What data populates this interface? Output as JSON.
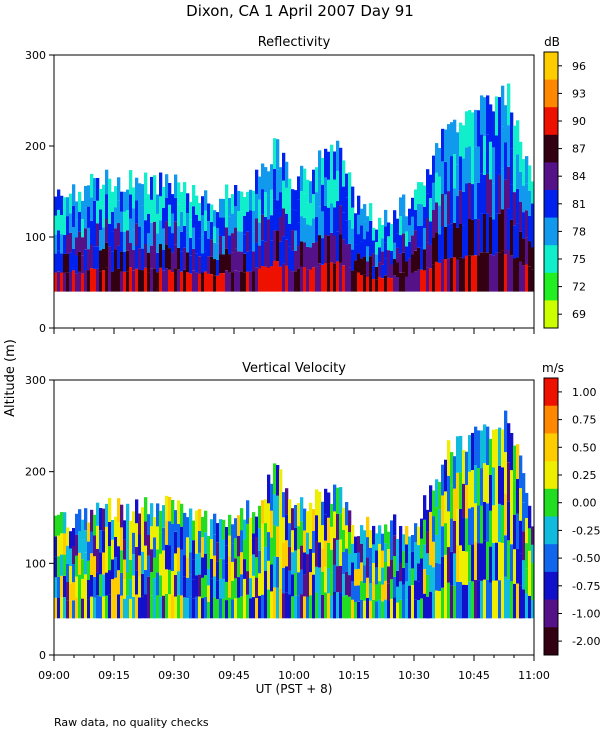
{
  "figure": {
    "title": "Dixon, CA   1 April 2007   Day   91",
    "ylabel": "Altitude (m)",
    "xlabel": "UT  (PST + 8)",
    "footnote": "Raw data, no quality checks"
  },
  "chart_data": [
    {
      "type": "heatmap",
      "title": "Reflectivity",
      "xlabel": "UT  (PST + 8)",
      "ylabel": "Altitude (m)",
      "x_range": [
        "09:00",
        "11:00"
      ],
      "x_ticks": [
        "09:00",
        "09:15",
        "09:30",
        "09:45",
        "10:00",
        "10:15",
        "10:30",
        "10:45",
        "11:00"
      ],
      "ylim": [
        0,
        300
      ],
      "y_ticks": [
        0,
        100,
        200,
        300
      ],
      "colorbar": {
        "unit": "dB",
        "labels": [
          "96",
          "93",
          "90",
          "87",
          "84",
          "81",
          "78",
          "75",
          "72",
          "69"
        ],
        "colors": [
          "#ffcc00",
          "#ff8800",
          "#ee1100",
          "#330011",
          "#551188",
          "#0022ee",
          "#1199ee",
          "#11eecc",
          "#22ee22",
          "#ccff00"
        ]
      },
      "data_floor_m": 40,
      "echo_top_m": [
        {
          "time": "09:00",
          "top": 140
        },
        {
          "time": "09:10",
          "top": 160
        },
        {
          "time": "09:20",
          "top": 160
        },
        {
          "time": "09:30",
          "top": 160
        },
        {
          "time": "09:40",
          "top": 140
        },
        {
          "time": "09:50",
          "top": 160
        },
        {
          "time": "09:55",
          "top": 200
        },
        {
          "time": "10:00",
          "top": 160
        },
        {
          "time": "10:10",
          "top": 200
        },
        {
          "time": "10:15",
          "top": 140
        },
        {
          "time": "10:20",
          "top": 120
        },
        {
          "time": "10:30",
          "top": 140
        },
        {
          "time": "10:38",
          "top": 220
        },
        {
          "time": "10:45",
          "top": 240
        },
        {
          "time": "10:53",
          "top": 260
        },
        {
          "time": "11:00",
          "top": 140
        }
      ]
    },
    {
      "type": "heatmap",
      "title": "Vertical Velocity",
      "xlabel": "UT  (PST + 8)",
      "ylabel": "Altitude (m)",
      "x_range": [
        "09:00",
        "11:00"
      ],
      "x_ticks": [
        "09:00",
        "09:15",
        "09:30",
        "09:45",
        "10:00",
        "10:15",
        "10:30",
        "10:45",
        "11:00"
      ],
      "ylim": [
        0,
        300
      ],
      "y_ticks": [
        0,
        100,
        200,
        300
      ],
      "colorbar": {
        "unit": "m/s",
        "labels": [
          "1.00",
          "0.75",
          "0.50",
          "0.25",
          "0.00",
          "-0.25",
          "-0.50",
          "-0.75",
          "-1.00",
          "-2.00"
        ],
        "colors": [
          "#ee1100",
          "#ff8800",
          "#ffcc00",
          "#eeee00",
          "#22dd22",
          "#11bbdd",
          "#1166ee",
          "#1111cc",
          "#551188",
          "#330011"
        ]
      },
      "data_floor_m": 40,
      "echo_top_m": [
        {
          "time": "09:00",
          "top": 140
        },
        {
          "time": "09:10",
          "top": 160
        },
        {
          "time": "09:20",
          "top": 160
        },
        {
          "time": "09:30",
          "top": 160
        },
        {
          "time": "09:40",
          "top": 140
        },
        {
          "time": "09:50",
          "top": 160
        },
        {
          "time": "09:55",
          "top": 200
        },
        {
          "time": "10:00",
          "top": 160
        },
        {
          "time": "10:10",
          "top": 180
        },
        {
          "time": "10:15",
          "top": 140
        },
        {
          "time": "10:20",
          "top": 140
        },
        {
          "time": "10:30",
          "top": 140
        },
        {
          "time": "10:38",
          "top": 220
        },
        {
          "time": "10:45",
          "top": 240
        },
        {
          "time": "10:53",
          "top": 260
        },
        {
          "time": "11:00",
          "top": 140
        }
      ]
    }
  ]
}
